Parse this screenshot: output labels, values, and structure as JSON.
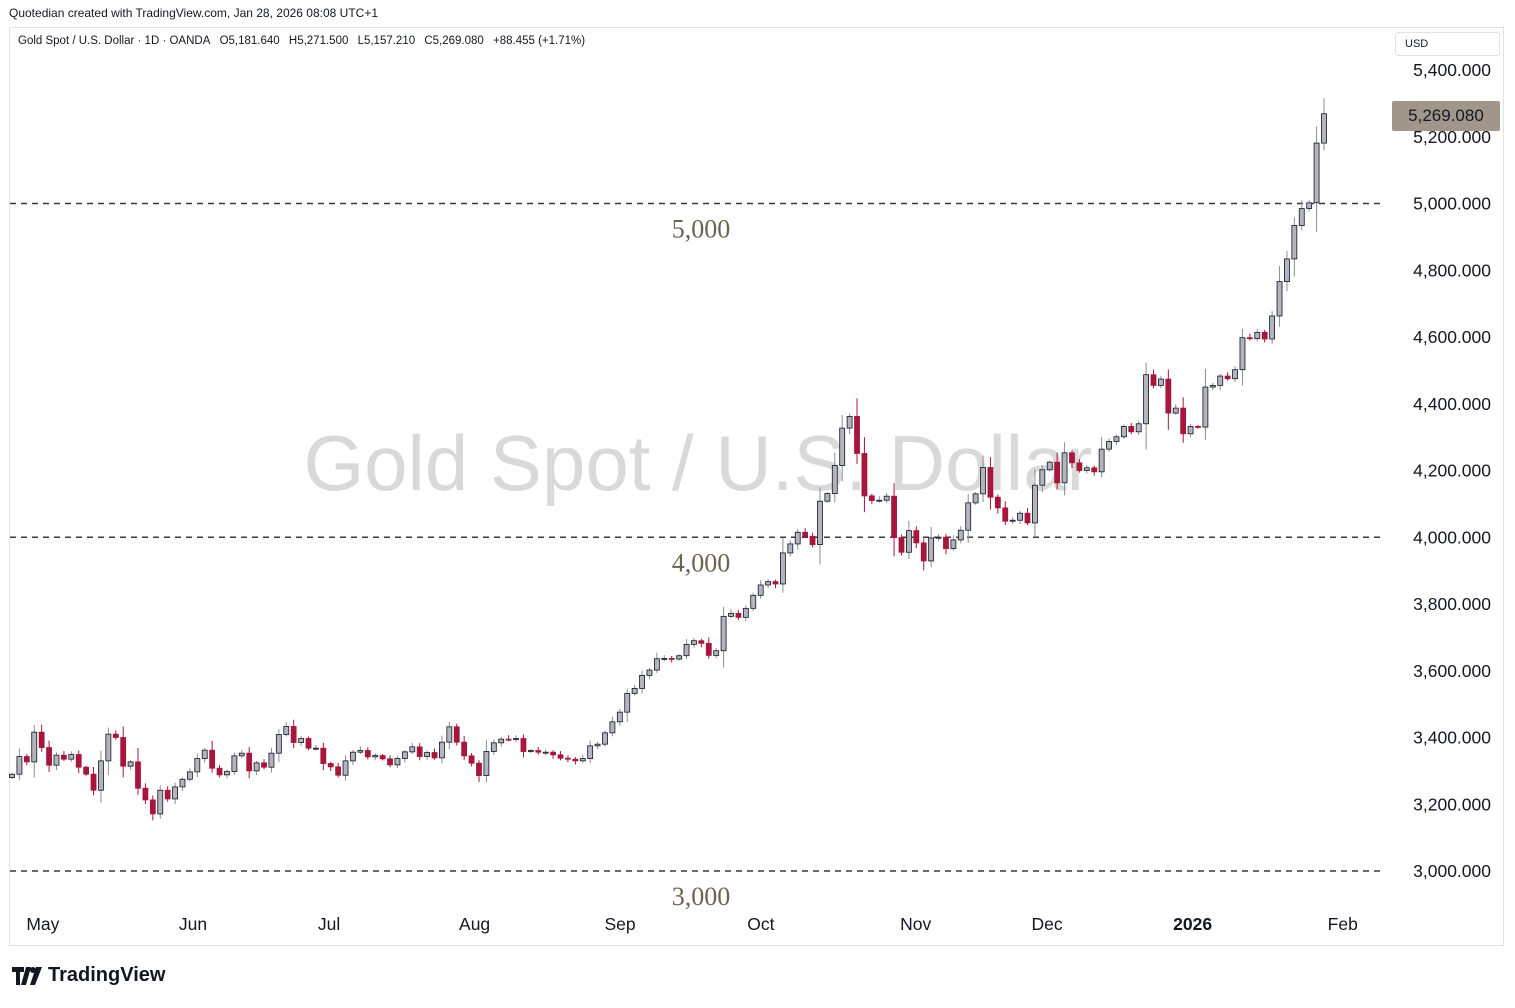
{
  "header": {
    "credit": "Quotedian created with TradingView.com, Jan 28, 2026 08:08 UTC+1"
  },
  "legend": {
    "title": "Gold Spot / U.S. Dollar · 1D · OANDA",
    "open": "O5,181.640",
    "high": "H5,271.500",
    "low": "L5,157.210",
    "close": "C5,269.080",
    "change": "+88.455 (+1.71%)"
  },
  "currency": "USD",
  "last_price_label": "5,269.080",
  "footer": {
    "brand": "TradingView"
  },
  "colors": {
    "up": "#b2b5be",
    "down": "#a7163c",
    "outline": "#131722",
    "level_line": "#3a3a3a",
    "level_text": "#6d6152",
    "watermark": "#d9d9d9",
    "price_tag": "#a0968b"
  },
  "chart_data": {
    "type": "candlestick",
    "title": "Gold Spot / U.S. Dollar",
    "watermark": "Gold Spot / U.S. Dollar",
    "y_axis": {
      "range": [
        2920,
        5490
      ],
      "ticks": [
        3000,
        3200,
        3400,
        3600,
        3800,
        4000,
        4200,
        4400,
        4600,
        4800,
        5000,
        5200,
        5400
      ],
      "tick_labels": [
        "3,000.000",
        "3,200.000",
        "3,400.000",
        "3,600.000",
        "3,800.000",
        "4,000.000",
        "4,200.000",
        "4,400.000",
        "4,600.000",
        "4,800.000",
        "5,000.000",
        "5,200.000",
        "5,400.000"
      ]
    },
    "x_axis": {
      "start_date": "2025-04-24",
      "end_date": "2026-02-11",
      "ticks": [
        {
          "label": "May",
          "date": "2025-05-01",
          "bold": false
        },
        {
          "label": "Jun",
          "date": "2025-06-02",
          "bold": false
        },
        {
          "label": "Jul",
          "date": "2025-07-01",
          "bold": false
        },
        {
          "label": "Aug",
          "date": "2025-08-01",
          "bold": false
        },
        {
          "label": "Sep",
          "date": "2025-09-01",
          "bold": false
        },
        {
          "label": "Oct",
          "date": "2025-10-01",
          "bold": false
        },
        {
          "label": "Nov",
          "date": "2025-11-03",
          "bold": false
        },
        {
          "label": "Dec",
          "date": "2025-12-01",
          "bold": false
        },
        {
          "label": "2026",
          "date": "2026-01-01",
          "bold": true
        },
        {
          "label": "Feb",
          "date": "2026-02-02",
          "bold": false
        }
      ]
    },
    "levels": [
      {
        "value": 5000,
        "label": "5,000"
      },
      {
        "value": 4000,
        "label": "4,000"
      },
      {
        "value": 3000,
        "label": "3,000"
      }
    ],
    "closes": [
      3290,
      3343,
      3327,
      3416,
      3370,
      3317,
      3347,
      3335,
      3349,
      3311,
      3290,
      3242,
      3330,
      3410,
      3400,
      3314,
      3327,
      3248,
      3213,
      3171,
      3242,
      3216,
      3252,
      3275,
      3297,
      3337,
      3362,
      3308,
      3288,
      3298,
      3345,
      3353,
      3300,
      3324,
      3311,
      3353,
      3409,
      3433,
      3385,
      3397,
      3368,
      3368,
      3322,
      3312,
      3287,
      3330,
      3356,
      3361,
      3342,
      3346,
      3336,
      3318,
      3337,
      3357,
      3372,
      3343,
      3355,
      3339,
      3386,
      3432,
      3386,
      3345,
      3323,
      3286,
      3358,
      3384,
      3395,
      3394,
      3397,
      3358,
      3361,
      3356,
      3356,
      3348,
      3338,
      3335,
      3330,
      3337,
      3375,
      3380,
      3414,
      3447,
      3476,
      3532,
      3547,
      3586,
      3602,
      3636,
      3637,
      3635,
      3645,
      3679,
      3690,
      3682,
      3646,
      3660,
      3763,
      3772,
      3760,
      3787,
      3826,
      3857,
      3867,
      3860,
      3953,
      3980,
      4015,
      4003,
      3978,
      4108,
      4131,
      4215,
      4327,
      4362,
      4251,
      4124,
      4110,
      4111,
      4123,
      3999,
      3955,
      4020,
      3983,
      3929,
      3998,
      4000,
      3966,
      3992,
      4021,
      4103,
      4130,
      4209,
      4120,
      4088,
      4048,
      4051,
      4072,
      4043,
      4156,
      4202,
      4225,
      4163,
      4253,
      4223,
      4200,
      4208,
      4196,
      4264,
      4287,
      4301,
      4332,
      4316,
      4340,
      4487,
      4455,
      4474,
      4372,
      4387,
      4310,
      4332,
      4330,
      4450,
      4455,
      4483,
      4475,
      4502,
      4598,
      4595,
      4614,
      4594,
      4663,
      4766,
      4834,
      4934,
      4985,
      5002,
      5181,
      5269
    ],
    "last_close": 5269.08
  }
}
